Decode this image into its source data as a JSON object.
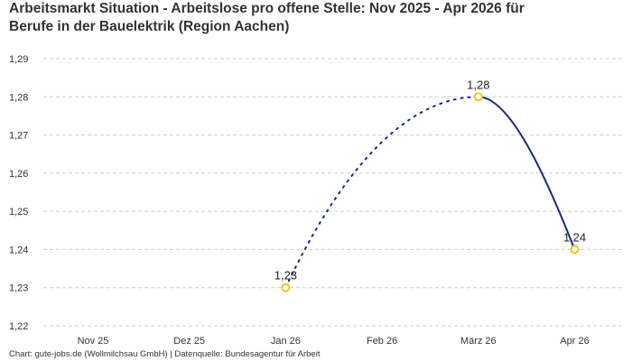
{
  "title_lines": [
    "Arbeitsmarkt Situation - Arbeitslose pro offene Stelle: Nov 2025 - Apr 2026 für",
    "Berufe in der Bauelektrik (Region Aachen)"
  ],
  "footer": "Chart: gute-jobs.de (Wollmilchsau GmbH) | Datenquelle: Bundesagentur für Arbeit",
  "colors": {
    "line": "#1a2a80",
    "marker": "#f5c518",
    "grid": "#cccccc",
    "text": "#333333"
  },
  "chart_data": {
    "type": "line",
    "categories": [
      "Nov 25",
      "Dez 25",
      "Jan 26",
      "Feb 26",
      "März 26",
      "Apr 26"
    ],
    "values": [
      null,
      null,
      1.23,
      null,
      1.28,
      1.24
    ],
    "data_labels": [
      "",
      "",
      "1,23",
      "",
      "1,28",
      "1,24"
    ],
    "ylim": [
      1.22,
      1.29
    ],
    "yticks": [
      1.22,
      1.23,
      1.24,
      1.25,
      1.26,
      1.27,
      1.28,
      1.29
    ],
    "ytick_labels": [
      "1,22",
      "1,23",
      "1,24",
      "1,25",
      "1,26",
      "1,27",
      "1,28",
      "1,29"
    ],
    "segments": [
      {
        "from": "Jan 26",
        "to": "März 26",
        "style": "dotted"
      },
      {
        "from": "März 26",
        "to": "Apr 26",
        "style": "solid"
      }
    ],
    "grid": true,
    "legend": "none",
    "xlabel": "",
    "ylabel": ""
  }
}
